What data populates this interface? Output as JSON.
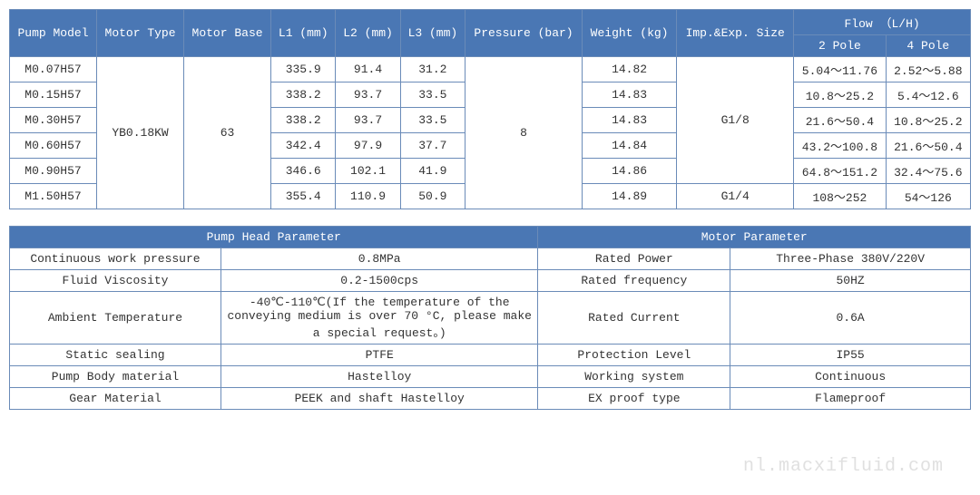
{
  "table1": {
    "headers": {
      "pump_model": "Pump Model",
      "motor_type": "Motor Type",
      "motor_base": "Motor Base",
      "l1": "L1 (mm)",
      "l2": "L2 (mm)",
      "l3": "L3 (mm)",
      "pressure": "Pressure (bar)",
      "weight": "Weight (kg)",
      "imp_exp": "Imp.&Exp. Size",
      "flow": "Flow （L/H)",
      "pole2": "2 Pole",
      "pole4": "4 Pole"
    },
    "shared": {
      "motor_type": "YB0.18KW",
      "motor_base": "63",
      "pressure": "8",
      "imp1": "G1/8",
      "imp2": "G1/4"
    },
    "rows": [
      {
        "model": "M0.07H57",
        "l1": "335.9",
        "l2": "91.4",
        "l3": "31.2",
        "weight": "14.82",
        "p2": "5.04～11.76",
        "p4": "2.52～5.88"
      },
      {
        "model": "M0.15H57",
        "l1": "338.2",
        "l2": "93.7",
        "l3": "33.5",
        "weight": "14.83",
        "p2": "10.8～25.2",
        "p4": "5.4～12.6"
      },
      {
        "model": "M0.30H57",
        "l1": "338.2",
        "l2": "93.7",
        "l3": "33.5",
        "weight": "14.83",
        "p2": "21.6～50.4",
        "p4": "10.8～25.2"
      },
      {
        "model": "M0.60H57",
        "l1": "342.4",
        "l2": "97.9",
        "l3": "37.7",
        "weight": "14.84",
        "p2": "43.2～100.8",
        "p4": "21.6～50.4"
      },
      {
        "model": "M0.90H57",
        "l1": "346.6",
        "l2": "102.1",
        "l3": "41.9",
        "weight": "14.86",
        "p2": "64.8～151.2",
        "p4": "32.4～75.6"
      },
      {
        "model": "M1.50H57",
        "l1": "355.4",
        "l2": "110.9",
        "l3": "50.9",
        "weight": "14.89",
        "p2": "108～252",
        "p4": "54～126"
      }
    ]
  },
  "table2": {
    "headers": {
      "pump_head": "Pump Head Parameter",
      "motor": "Motor Parameter"
    },
    "rows": [
      {
        "a": "Continuous work pressure",
        "b": "0.8MPa",
        "c": "Rated Power",
        "d": "Three-Phase 380V/220V"
      },
      {
        "a": "Fluid Viscosity",
        "b": "0.2-1500cps",
        "c": "Rated frequency",
        "d": "50HZ"
      },
      {
        "a": "Ambient Temperature",
        "b": "-40℃-110℃(If the temperature of the conveying medium is over 70 °C, please make a special request。)",
        "c": "Rated Current",
        "d": "0.6A"
      },
      {
        "a": "Static sealing",
        "b": "PTFE",
        "c": "Protection Level",
        "d": "IP55"
      },
      {
        "a": "Pump Body material",
        "b": "Hastelloy",
        "c": "Working system",
        "d": "Continuous"
      },
      {
        "a": "Gear Material",
        "b": "PEEK and shaft Hastelloy",
        "c": "EX proof type",
        "d": "Flameproof"
      }
    ]
  },
  "watermark": "nl.macxifluid.com"
}
